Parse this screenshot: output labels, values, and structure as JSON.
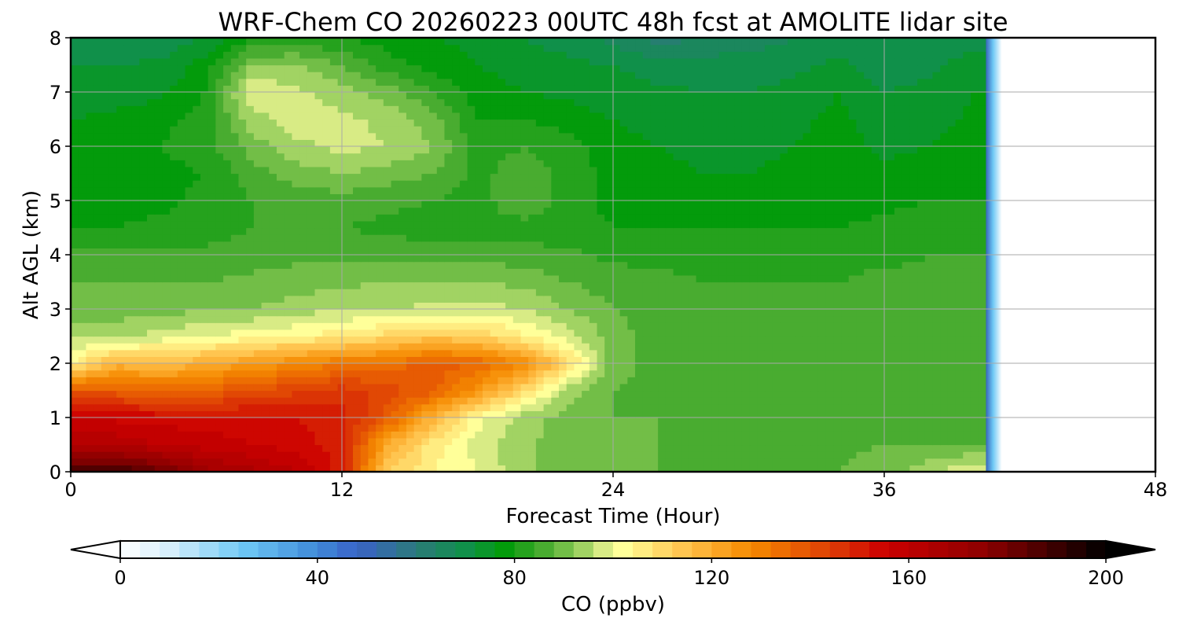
{
  "chart_data": {
    "type": "heatmap",
    "title": "WRF-Chem CO  20260223 00UTC 48h fcst at AMOLITE lidar site",
    "xlabel": "Forecast Time (Hour)",
    "ylabel": "Alt AGL (km)",
    "xlim": [
      0,
      48
    ],
    "ylim": [
      0,
      8
    ],
    "xticks": [
      0,
      12,
      24,
      36,
      48
    ],
    "yticks": [
      0,
      1,
      2,
      3,
      4,
      5,
      6,
      7,
      8
    ],
    "grid": true,
    "data_end_hour": 40.5,
    "z_unit": "ppbv",
    "x_hours": [
      0,
      2,
      4,
      6,
      8,
      10,
      12,
      14,
      16,
      18,
      20,
      22,
      24,
      26,
      28,
      30,
      32,
      34,
      36,
      38,
      40
    ],
    "y_km": [
      0,
      0.5,
      1,
      1.5,
      2,
      2.5,
      3,
      3.5,
      4,
      4.5,
      5,
      5.5,
      6,
      6.5,
      7,
      7.5,
      8
    ],
    "z_ppbv": [
      [
        188,
        190,
        182,
        170,
        165,
        160,
        150,
        112,
        104,
        100,
        93,
        90,
        88,
        88,
        87,
        87,
        87,
        88,
        90,
        95,
        100
      ],
      [
        165,
        163,
        160,
        158,
        156,
        154,
        150,
        120,
        106,
        98,
        93,
        90,
        88,
        88,
        87,
        87,
        87,
        87,
        88,
        88,
        88
      ],
      [
        155,
        155,
        154,
        154,
        153,
        152,
        150,
        138,
        118,
        102,
        94,
        90,
        88,
        88,
        87,
        87,
        87,
        87,
        87,
        87,
        87
      ],
      [
        140,
        138,
        136,
        137,
        140,
        143,
        146,
        142,
        138,
        125,
        110,
        94,
        88,
        87,
        87,
        86,
        86,
        86,
        86,
        86,
        86
      ],
      [
        104,
        118,
        115,
        120,
        124,
        128,
        132,
        133,
        138,
        136,
        128,
        110,
        90,
        86,
        85,
        85,
        85,
        85,
        85,
        85,
        85
      ],
      [
        95,
        95,
        98,
        100,
        102,
        104,
        106,
        110,
        114,
        112,
        105,
        98,
        90,
        86,
        85,
        85,
        85,
        85,
        85,
        85,
        85
      ],
      [
        90,
        90,
        90,
        92,
        92,
        94,
        96,
        96,
        97,
        98,
        96,
        92,
        88,
        86,
        85,
        85,
        85,
        85,
        85,
        85,
        85
      ],
      [
        88,
        88,
        88,
        88,
        89,
        90,
        91,
        92,
        92,
        92,
        91,
        88,
        86,
        85,
        84,
        84,
        84,
        84,
        85,
        85,
        85
      ],
      [
        85,
        85,
        85,
        85,
        86,
        87,
        87,
        87,
        86,
        86,
        86,
        85,
        83,
        83,
        83,
        83,
        83,
        83,
        83,
        84,
        84
      ],
      [
        80,
        80,
        81,
        82,
        84,
        85,
        84,
        83,
        82,
        82,
        82,
        81,
        80,
        80,
        80,
        80,
        80,
        80,
        81,
        82,
        82
      ],
      [
        78,
        78,
        79,
        81,
        84,
        86,
        86,
        85,
        84,
        82,
        88,
        82,
        79,
        78,
        77,
        77,
        78,
        78,
        79,
        80,
        80
      ],
      [
        77,
        78,
        79,
        80,
        86,
        90,
        92,
        90,
        88,
        83,
        86,
        83,
        78,
        77,
        76,
        76,
        77,
        78,
        77,
        78,
        78
      ],
      [
        77,
        78,
        80,
        82,
        90,
        95,
        97,
        96,
        92,
        82,
        84,
        82,
        77,
        76,
        75,
        75,
        76,
        78,
        75,
        76,
        78
      ],
      [
        76,
        77,
        79,
        82,
        94,
        98,
        97,
        95,
        90,
        80,
        80,
        78,
        76,
        75,
        74,
        74,
        75,
        77,
        74,
        74,
        77
      ],
      [
        74,
        74,
        75,
        80,
        100,
        97,
        94,
        90,
        84,
        78,
        76,
        75,
        74,
        73,
        72,
        72,
        73,
        76,
        72,
        73,
        76
      ],
      [
        72,
        72,
        73,
        78,
        92,
        92,
        88,
        82,
        78,
        76,
        74,
        73,
        72,
        70,
        70,
        70,
        71,
        73,
        70,
        71,
        74
      ],
      [
        68,
        68,
        69,
        72,
        80,
        82,
        80,
        78,
        76,
        75,
        72,
        70,
        67,
        62,
        64,
        66,
        68,
        70,
        68,
        68,
        70
      ]
    ],
    "colorbar": {
      "label": "CO  (ppbv)",
      "ticks": [
        0,
        40,
        80,
        120,
        160,
        200
      ],
      "vmin": 0,
      "vmax": 200,
      "extend": "both",
      "colormap": [
        [
          0,
          "#ffffff"
        ],
        [
          10,
          "#d6eefb"
        ],
        [
          25,
          "#6ec8f5"
        ],
        [
          40,
          "#3f8ad8"
        ],
        [
          48,
          "#3a62c8"
        ],
        [
          60,
          "#2b7a7a"
        ],
        [
          70,
          "#10904a"
        ],
        [
          78,
          "#039b0b"
        ],
        [
          85,
          "#3fa82a"
        ],
        [
          92,
          "#86c752"
        ],
        [
          98,
          "#d8eb85"
        ],
        [
          102,
          "#ffff99"
        ],
        [
          115,
          "#ffc04a"
        ],
        [
          128,
          "#f58a00"
        ],
        [
          145,
          "#dd3a05"
        ],
        [
          155,
          "#cc0000"
        ],
        [
          175,
          "#8f0000"
        ],
        [
          200,
          "#000000"
        ]
      ]
    }
  }
}
